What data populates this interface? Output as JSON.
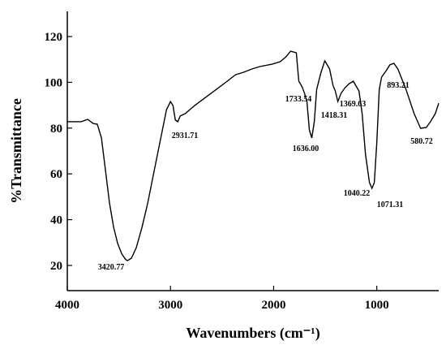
{
  "chart_data": {
    "type": "line",
    "x_label": "Wavenumbers (cm⁻¹)",
    "y_label": "%Transmittance",
    "xlim": [
      4000,
      400
    ],
    "ylim": [
      9,
      131
    ],
    "xticks": [
      4000,
      3000,
      2000,
      1000
    ],
    "yticks": [
      20,
      40,
      60,
      80,
      100,
      120
    ],
    "series": [
      {
        "color": "#000000",
        "x": [
          4000,
          3866,
          3803,
          3748,
          3709,
          3669,
          3630,
          3591,
          3551,
          3512,
          3472,
          3433,
          3417,
          3378,
          3331,
          3276,
          3220,
          3157,
          3094,
          3039,
          3000,
          2976,
          2953,
          2929,
          2906,
          2858,
          2764,
          2606,
          2449,
          2370,
          2291,
          2213,
          2134,
          2016,
          1937,
          1882,
          1835,
          1780,
          1756,
          1724,
          1701,
          1677,
          1654,
          1630,
          1606,
          1583,
          1543,
          1504,
          1480,
          1457,
          1425,
          1402,
          1378,
          1346,
          1307,
          1268,
          1228,
          1205,
          1173,
          1142,
          1110,
          1071,
          1047,
          1024,
          1000,
          976,
          953,
          913,
          874,
          835,
          795,
          717,
          638,
          575,
          520,
          480,
          433,
          400
        ],
        "values": [
          82.8,
          82.8,
          83.8,
          82,
          81.7,
          75.7,
          61.5,
          47.3,
          36.7,
          29.6,
          25,
          22.5,
          22.1,
          23.2,
          27.8,
          36.7,
          47.3,
          61.5,
          75.7,
          88,
          91.6,
          89.9,
          83.5,
          82.8,
          85.3,
          86.3,
          89.9,
          95.2,
          100.5,
          103.3,
          104.4,
          105.8,
          106.9,
          107.9,
          109,
          111.1,
          113.6,
          112.9,
          100.5,
          98,
          95.2,
          91.6,
          79.2,
          75.7,
          82.8,
          96.9,
          104,
          109.4,
          107.6,
          105.8,
          98.7,
          96.2,
          91.6,
          95.2,
          97.7,
          99.4,
          100.5,
          98.7,
          96.2,
          86.3,
          68.6,
          56.2,
          53.7,
          56.2,
          73.9,
          96.9,
          102.3,
          104.8,
          107.6,
          108.3,
          105.8,
          96.9,
          86.3,
          79.9,
          80.3,
          82.8,
          86.3,
          90.9
        ]
      }
    ],
    "annotations": [
      "3420.77",
      "2931.71",
      "1733.54",
      "1636.00",
      "1418.31",
      "1369.63",
      "1040.22",
      "1071.31",
      "893.21",
      "580.72"
    ]
  }
}
